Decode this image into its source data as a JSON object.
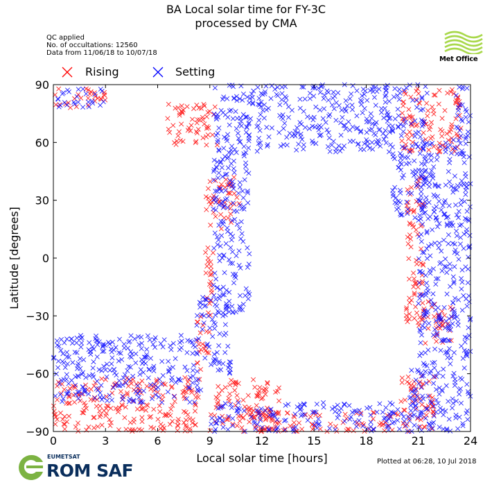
{
  "header": {
    "title_line1": "BA Local solar time for FY-3C",
    "title_line2": "processed by CMA"
  },
  "info": {
    "line1": "QC applied",
    "line2": "No. of occultations: 12560",
    "line3": "Data from 11/06/18 to 10/07/18"
  },
  "logos": {
    "met_office": "Met Office",
    "eumetsat": "EUMETSAT",
    "rom_saf": "ROM SAF"
  },
  "footer": {
    "plotted": "Plotted at 06:28, 10 Jul 2018"
  },
  "colors": {
    "rising": "#ff0000",
    "setting": "#0000ff",
    "eumetsat_green": "#7cb342",
    "met_office_green": "#a8d84a",
    "rom_saf_navy": "#0a2e5c"
  },
  "chart_data": {
    "type": "scatter",
    "title": "BA Local solar time for FY-3C\nprocessed by CMA",
    "xlabel": "Local solar time [hours]",
    "ylabel": "Latitude [degrees]",
    "xlim": [
      0,
      24
    ],
    "ylim": [
      -90,
      90
    ],
    "xticks": [
      0,
      3,
      6,
      9,
      12,
      15,
      18,
      21,
      24
    ],
    "yticks": [
      -90,
      -60,
      -30,
      0,
      30,
      60,
      90
    ],
    "xtick_labels": [
      "0",
      "3",
      "6",
      "9",
      "12",
      "15",
      "18",
      "21",
      "24"
    ],
    "ytick_labels": [
      "−90",
      "−60",
      "−30",
      "0",
      "30",
      "60",
      "90"
    ],
    "legend_position": "top-left",
    "marker": "x",
    "series": [
      {
        "name": "Rising",
        "color": "#ff0000",
        "bands": [
          {
            "x": [
              8.7,
              9.2
            ],
            "y": [
              -30,
              40
            ]
          },
          {
            "x": [
              9.2,
              10.7
            ],
            "y": [
              15,
              42
            ]
          },
          {
            "x": [
              8.2,
              9.0
            ],
            "y": [
              -58,
              -30
            ]
          },
          {
            "x": [
              6.5,
              9.5
            ],
            "y": [
              58,
              80
            ]
          },
          {
            "x": [
              0.0,
              3.0
            ],
            "y": [
              78,
              88
            ]
          },
          {
            "x": [
              0.0,
              8.5
            ],
            "y": [
              -90,
              -62
            ]
          },
          {
            "x": [
              20.3,
              21.3
            ],
            "y": [
              -35,
              45
            ]
          },
          {
            "x": [
              21.2,
              23.0
            ],
            "y": [
              -45,
              -22
            ]
          },
          {
            "x": [
              20.0,
              22.0
            ],
            "y": [
              -90,
              -60
            ]
          },
          {
            "x": [
              20.0,
              23.5
            ],
            "y": [
              55,
              88
            ]
          },
          {
            "x": [
              9.0,
              13.0
            ],
            "y": [
              -90,
              -62
            ]
          },
          {
            "x": [
              11.0,
              20.0
            ],
            "y": [
              -90,
              -80
            ]
          }
        ]
      },
      {
        "name": "Setting",
        "color": "#0000ff",
        "bands": [
          {
            "x": [
              9.2,
              11.3
            ],
            "y": [
              -30,
              90
            ]
          },
          {
            "x": [
              11.2,
              19.5
            ],
            "y": [
              55,
              90
            ]
          },
          {
            "x": [
              8.2,
              10.2
            ],
            "y": [
              -60,
              -20
            ]
          },
          {
            "x": [
              0.0,
              8.5
            ],
            "y": [
              -75,
              -40
            ]
          },
          {
            "x": [
              0.0,
              3.0
            ],
            "y": [
              78,
              88
            ]
          },
          {
            "x": [
              21.0,
              24.0
            ],
            "y": [
              -55,
              60
            ]
          },
          {
            "x": [
              19.5,
              21.5
            ],
            "y": [
              20,
              90
            ]
          },
          {
            "x": [
              20.5,
              24.0
            ],
            "y": [
              -90,
              -55
            ]
          },
          {
            "x": [
              9.0,
              21.0
            ],
            "y": [
              -90,
              -75
            ]
          },
          {
            "x": [
              23.0,
              24.0
            ],
            "y": [
              60,
              90
            ]
          }
        ]
      }
    ]
  }
}
